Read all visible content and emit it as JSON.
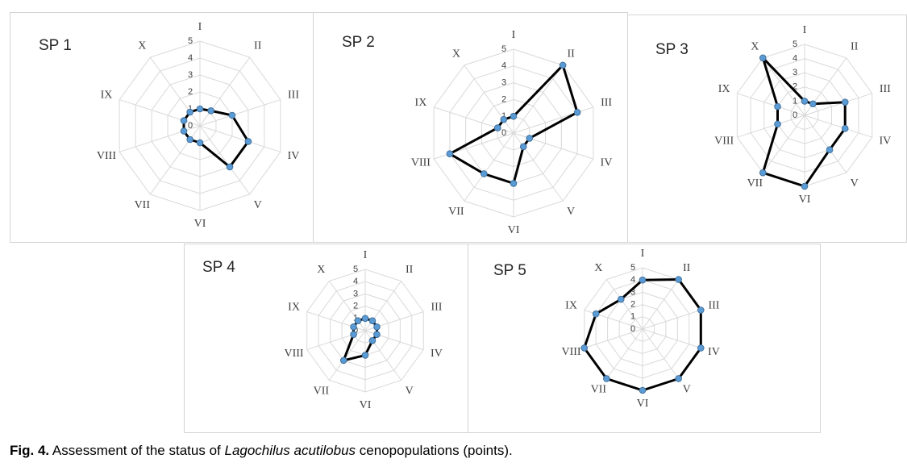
{
  "chart_data": [
    {
      "type": "radar",
      "title": "SP 1",
      "categories": [
        "I",
        "II",
        "III",
        "IV",
        "V",
        "VI",
        "VII",
        "VIII",
        "IX",
        "X"
      ],
      "values": [
        1,
        1.1,
        2,
        3,
        3,
        1,
        1,
        1,
        1,
        1
      ],
      "rlim": [
        0,
        5
      ],
      "rticks": [
        0,
        1,
        2,
        3,
        4,
        5
      ],
      "line_color": "#000000",
      "marker_color": "#5b9bd5",
      "grid": true
    },
    {
      "type": "radar",
      "title": "SP 2",
      "categories": [
        "I",
        "II",
        "III",
        "IV",
        "V",
        "VI",
        "VII",
        "VIII",
        "IX",
        "X"
      ],
      "values": [
        1,
        5,
        4,
        1,
        1,
        3,
        3,
        4,
        1,
        1
      ],
      "rlim": [
        0,
        5
      ],
      "rticks": [
        0,
        1,
        2,
        3,
        4,
        5
      ],
      "line_color": "#000000",
      "marker_color": "#5b9bd5",
      "grid": true
    },
    {
      "type": "radar",
      "title": "SP 3",
      "categories": [
        "I",
        "II",
        "III",
        "IV",
        "V",
        "VI",
        "VII",
        "VIII",
        "IX",
        "X"
      ],
      "values": [
        1,
        1,
        3,
        3,
        3,
        5,
        5,
        2,
        2,
        5
      ],
      "rlim": [
        0,
        5
      ],
      "rticks": [
        0,
        1,
        2,
        3,
        4,
        5
      ],
      "line_color": "#000000",
      "marker_color": "#5b9bd5",
      "grid": true
    },
    {
      "type": "radar",
      "title": "SP 4",
      "categories": [
        "I",
        "II",
        "III",
        "IV",
        "V",
        "VI",
        "VII",
        "VIII",
        "IX",
        "X"
      ],
      "values": [
        1,
        1,
        1,
        1,
        1,
        2,
        3,
        1,
        1,
        1
      ],
      "rlim": [
        0,
        5
      ],
      "rticks": [
        0,
        1,
        2,
        3,
        4,
        5
      ],
      "line_color": "#000000",
      "marker_color": "#5b9bd5",
      "grid": true
    },
    {
      "type": "radar",
      "title": "SP 5",
      "categories": [
        "I",
        "II",
        "III",
        "IV",
        "V",
        "VI",
        "VII",
        "VIII",
        "IX",
        "X"
      ],
      "values": [
        4,
        5,
        5,
        5,
        5,
        5,
        5,
        5,
        4,
        3
      ],
      "rlim": [
        0,
        5
      ],
      "rticks": [
        0,
        1,
        2,
        3,
        4,
        5
      ],
      "line_color": "#000000",
      "marker_color": "#5b9bd5",
      "grid": true
    }
  ],
  "caption": [
    "Fig. 4.",
    "Assessment of the status of",
    "Lagochilus acutilobus",
    "cenopopulations (points)."
  ]
}
